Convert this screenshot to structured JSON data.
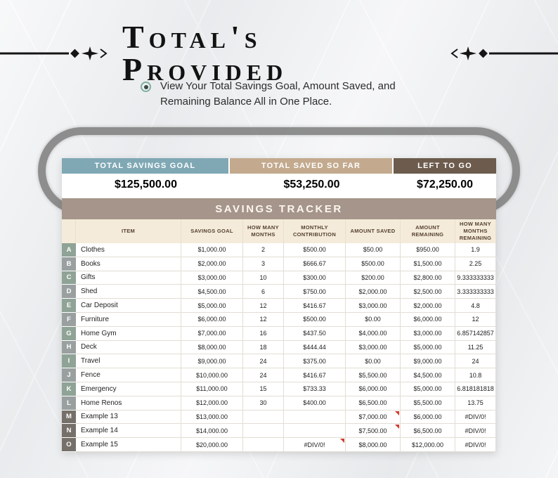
{
  "header": {
    "title": "Total's Provided"
  },
  "intro": {
    "line1": "View Your Total Savings Goal, Amount Saved, and",
    "line2": "Remaining Balance All in One Place."
  },
  "totals": {
    "cells": [
      {
        "label": "TOTAL SAVINGS GOAL",
        "value": "$125,500.00",
        "color": "#7fa8b4"
      },
      {
        "label": "TOTAL SAVED SO FAR",
        "value": "$53,250.00",
        "color": "#c3aa8e"
      },
      {
        "label": "LEFT TO GO",
        "value": "$72,250.00",
        "color": "#6d5b4d"
      }
    ]
  },
  "tracker": {
    "banner": "SAVINGS TRACKER",
    "banner_color": "#a6958b",
    "header_bg": "#f4ebda",
    "columns": [
      "ITEM",
      "SAVINGS GOAL",
      "HOW MANY MONTHS",
      "MONTHLY CONTRIBUTION",
      "AMOUNT SAVED",
      "AMOUNT REMAINING",
      "HOW MANY MONTHS REMAINING"
    ],
    "rows": [
      {
        "letter": "A",
        "letter_color": "#8fa396",
        "cells": [
          "Clothes",
          "$1,000.00",
          "2",
          "$500.00",
          "$50.00",
          "$950.00",
          "1.9"
        ],
        "flags": []
      },
      {
        "letter": "B",
        "letter_color": "#9aa0a0",
        "cells": [
          "Books",
          "$2,000.00",
          "3",
          "$666.67",
          "$500.00",
          "$1,500.00",
          "2.25"
        ],
        "flags": []
      },
      {
        "letter": "C",
        "letter_color": "#8fa396",
        "cells": [
          "Gifts",
          "$3,000.00",
          "10",
          "$300.00",
          "$200.00",
          "$2,800.00",
          "9.333333333"
        ],
        "flags": []
      },
      {
        "letter": "D",
        "letter_color": "#9aa0a0",
        "cells": [
          "Shed",
          "$4,500.00",
          "6",
          "$750.00",
          "$2,000.00",
          "$2,500.00",
          "3.333333333"
        ],
        "flags": []
      },
      {
        "letter": "E",
        "letter_color": "#8fa396",
        "cells": [
          "Car Deposit",
          "$5,000.00",
          "12",
          "$416.67",
          "$3,000.00",
          "$2,000.00",
          "4.8"
        ],
        "flags": []
      },
      {
        "letter": "F",
        "letter_color": "#9aa0a0",
        "cells": [
          "Furniture",
          "$6,000.00",
          "12",
          "$500.00",
          "$0.00",
          "$6,000.00",
          "12"
        ],
        "flags": []
      },
      {
        "letter": "G",
        "letter_color": "#8fa396",
        "cells": [
          "Home Gym",
          "$7,000.00",
          "16",
          "$437.50",
          "$4,000.00",
          "$3,000.00",
          "6.857142857"
        ],
        "flags": []
      },
      {
        "letter": "H",
        "letter_color": "#9aa0a0",
        "cells": [
          "Deck",
          "$8,000.00",
          "18",
          "$444.44",
          "$3,000.00",
          "$5,000.00",
          "11.25"
        ],
        "flags": []
      },
      {
        "letter": "I",
        "letter_color": "#8fa396",
        "cells": [
          "Travel",
          "$9,000.00",
          "24",
          "$375.00",
          "$0.00",
          "$9,000.00",
          "24"
        ],
        "flags": []
      },
      {
        "letter": "J",
        "letter_color": "#9aa0a0",
        "cells": [
          "Fence",
          "$10,000.00",
          "24",
          "$416.67",
          "$5,500.00",
          "$4,500.00",
          "10.8"
        ],
        "flags": []
      },
      {
        "letter": "K",
        "letter_color": "#8fa396",
        "cells": [
          "Emergency",
          "$11,000.00",
          "15",
          "$733.33",
          "$6,000.00",
          "$5,000.00",
          "6.818181818"
        ],
        "flags": []
      },
      {
        "letter": "L",
        "letter_color": "#9aa0a0",
        "cells": [
          "Home Renos",
          "$12,000.00",
          "30",
          "$400.00",
          "$6,500.00",
          "$5,500.00",
          "13.75"
        ],
        "flags": []
      },
      {
        "letter": "M",
        "letter_color": "#76706a",
        "cells": [
          "Example 13",
          "$13,000.00",
          "",
          "",
          "$7,000.00",
          "$6,000.00",
          "#DIV/0!"
        ],
        "flags": [
          4
        ]
      },
      {
        "letter": "N",
        "letter_color": "#76706a",
        "cells": [
          "Example 14",
          "$14,000.00",
          "",
          "",
          "$7,500.00",
          "$6,500.00",
          "#DIV/0!"
        ],
        "flags": [
          4
        ]
      },
      {
        "letter": "O",
        "letter_color": "#76706a",
        "cells": [
          "Example 15",
          "$20,000.00",
          "",
          "#DIV/0!",
          "$8,000.00",
          "$12,000.00",
          "#DIV/0!"
        ],
        "flags": [
          3
        ]
      }
    ]
  }
}
